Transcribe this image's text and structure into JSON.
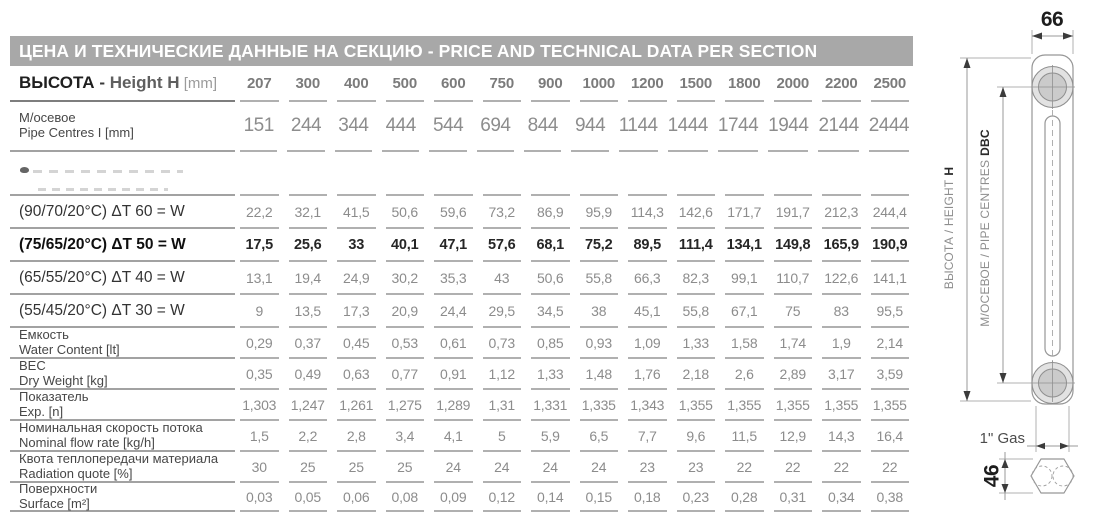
{
  "header": {
    "title": "ЦЕНА И ТЕХНИЧЕСКИЕ ДАННЫЕ НА СЕКЦИЮ - PRICE AND TECHNICAL DATA PER SECTION"
  },
  "table": {
    "rows": [
      {
        "key": "height",
        "label_ru": "ВЫСОТА",
        "label_dash": "-",
        "label_en": "Height H",
        "label_unit": "[mm]",
        "values": [
          "207",
          "300",
          "400",
          "500",
          "600",
          "750",
          "900",
          "1000",
          "1200",
          "1500",
          "1800",
          "2000",
          "2200",
          "2500"
        ]
      },
      {
        "key": "pipe-centres",
        "label_ru": "М/осевое",
        "label_en": "Pipe Centres I [mm]",
        "values": [
          "151",
          "244",
          "344",
          "444",
          "544",
          "694",
          "844",
          "944",
          "1144",
          "1444",
          "1744",
          "1944",
          "2144",
          "2444"
        ]
      },
      {
        "key": "erased",
        "label_ru": "",
        "label_en": "",
        "values": [
          "",
          "",
          "",
          "",
          "",
          "",
          "",
          "",
          "",
          "",
          "",
          "",
          "",
          ""
        ]
      },
      {
        "key": "dt60",
        "label_ru": "(90/70/20°C) ΔT 60 = W",
        "values": [
          "22,2",
          "32,1",
          "41,5",
          "50,6",
          "59,6",
          "73,2",
          "86,9",
          "95,9",
          "114,3",
          "142,6",
          "171,7",
          "191,7",
          "212,3",
          "244,4"
        ]
      },
      {
        "key": "dt50",
        "label_ru": "(75/65/20°C) ΔT 50 = W",
        "values": [
          "17,5",
          "25,6",
          "33",
          "40,1",
          "47,1",
          "57,6",
          "68,1",
          "75,2",
          "89,5",
          "111,4",
          "134,1",
          "149,8",
          "165,9",
          "190,9"
        ]
      },
      {
        "key": "dt40",
        "label_ru": "(65/55/20°C) ΔT 40 = W",
        "values": [
          "13,1",
          "19,4",
          "24,9",
          "30,2",
          "35,3",
          "43",
          "50,6",
          "55,8",
          "66,3",
          "82,3",
          "99,1",
          "110,7",
          "122,6",
          "141,1"
        ]
      },
      {
        "key": "dt30",
        "label_ru": "(55/45/20°C) ΔT 30 = W",
        "values": [
          "9",
          "13,5",
          "17,3",
          "20,9",
          "24,4",
          "29,5",
          "34,5",
          "38",
          "45,1",
          "55,8",
          "67,1",
          "75",
          "83",
          "95,5"
        ]
      },
      {
        "key": "water-content",
        "label_ru": "Емкость",
        "label_en": "Water Content [lt]",
        "values": [
          "0,29",
          "0,37",
          "0,45",
          "0,53",
          "0,61",
          "0,73",
          "0,85",
          "0,93",
          "1,09",
          "1,33",
          "1,58",
          "1,74",
          "1,9",
          "2,14"
        ]
      },
      {
        "key": "dry-weight",
        "label_ru": "ВЕС",
        "label_en": "Dry Weight [kg]",
        "values": [
          "0,35",
          "0,49",
          "0,63",
          "0,77",
          "0,91",
          "1,12",
          "1,33",
          "1,48",
          "1,76",
          "2,18",
          "2,6",
          "2,89",
          "3,17",
          "3,59"
        ]
      },
      {
        "key": "exp",
        "label_ru": "Показатель",
        "label_en": "Exp. [n]",
        "values": [
          "1,303",
          "1,247",
          "1,261",
          "1,275",
          "1,289",
          "1,31",
          "1,331",
          "1,335",
          "1,343",
          "1,355",
          "1,355",
          "1,355",
          "1,355",
          "1,355"
        ]
      },
      {
        "key": "flow-rate",
        "label_ru": "Номинальная скорость потока",
        "label_en": "Nominal flow rate [kg/h]",
        "values": [
          "1,5",
          "2,2",
          "2,8",
          "3,4",
          "4,1",
          "5",
          "5,9",
          "6,5",
          "7,7",
          "9,6",
          "11,5",
          "12,9",
          "14,3",
          "16,4"
        ]
      },
      {
        "key": "radiation-quote",
        "label_ru": "Квота теплопередачи материала",
        "label_en": "Radiation quote [%]",
        "values": [
          "30",
          "25",
          "25",
          "25",
          "24",
          "24",
          "24",
          "24",
          "23",
          "23",
          "22",
          "22",
          "22",
          "22"
        ]
      },
      {
        "key": "surface",
        "label_ru": "Поверхности",
        "label_en": "Surface [m²]",
        "values": [
          "0,03",
          "0,05",
          "0,06",
          "0,08",
          "0,09",
          "0,12",
          "0,14",
          "0,15",
          "0,18",
          "0,23",
          "0,28",
          "0,31",
          "0,34",
          "0,38"
        ]
      }
    ]
  },
  "diagram": {
    "width_mm": "66",
    "depth_mm": "46",
    "gas_label": "1\" Gas",
    "height_label": "ВЫСОТА / HEIGHT",
    "height_label_bold": "H",
    "pipe_centres_label": "М/ОСЕВОЕ / PIPE CENTRES",
    "pipe_centres_label_bold": "DBC"
  },
  "colors": {
    "header_bar": "#a8a8a8",
    "value_text": "#8c8c8c",
    "emphasis_text": "#262626",
    "rule": "#b0b0b0"
  }
}
